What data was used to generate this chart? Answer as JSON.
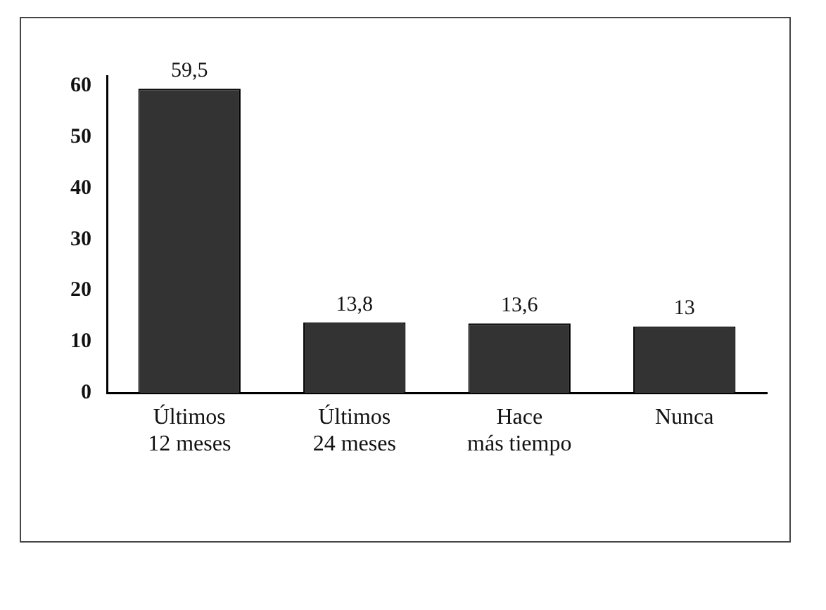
{
  "chart_data": {
    "type": "bar",
    "categories": [
      "Últimos 12 meses",
      "Últimos 24 meses",
      "Hace más tiempo",
      "Nunca"
    ],
    "values": [
      59.5,
      13.8,
      13.6,
      13
    ],
    "value_labels": [
      "59,5",
      "13,8",
      "13,6",
      "13"
    ],
    "color": "#333333",
    "ylim": [
      0,
      62
    ],
    "yticks": [
      0,
      10,
      20,
      30,
      40,
      50,
      60
    ],
    "grid": false,
    "legend": false
  }
}
